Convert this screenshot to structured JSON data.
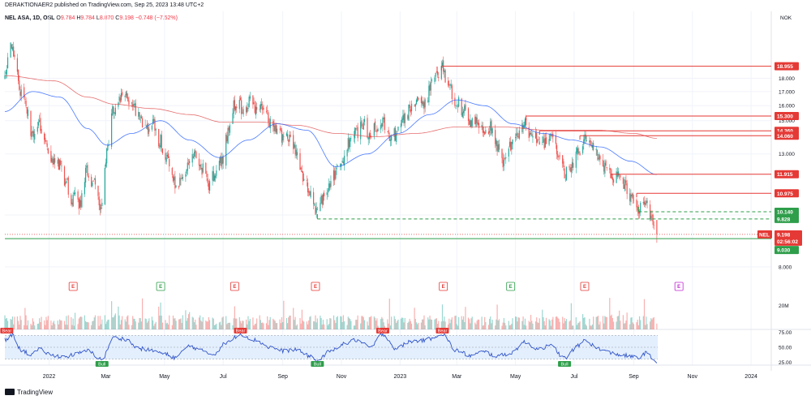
{
  "header": {
    "published": "DERAKTIONAER2 published on TradingView.com, Sep 25, 2023 13:48 UTC+2"
  },
  "legend": {
    "symbol": "NEL ASA, 1D, OSL",
    "o_label": "O",
    "o_value": "9.784",
    "h_label": "H",
    "h_value": "9.784",
    "l_label": "L",
    "l_value": "8.870",
    "c_label": "C",
    "c_value": "9.198",
    "change": "−0.748 (−7.52%)"
  },
  "footer": {
    "brand": "TradingView"
  },
  "colors": {
    "up": "#26a69a",
    "down": "#ef5350",
    "ma_fast": "#2962ff",
    "ma_slow": "#e04a4a",
    "level": "#e53935",
    "support": "#2e9e4a",
    "rsi": "#3154c8",
    "rsi_band": "#e3effd"
  },
  "chart_data": {
    "type": "candlestick",
    "symbol": "NEL",
    "currency": "NOK",
    "y_scale": "log",
    "ylim": [
      7.75,
      24.0
    ],
    "x_range": [
      "2021-11-16",
      "2024-01-22"
    ],
    "y_ticks": [
      "8.000",
      "10.000",
      "13.000",
      "15.000",
      "16.000",
      "17.000",
      "18.000"
    ],
    "x_ticks": [
      {
        "date": "2022-01-01",
        "label": "2022"
      },
      {
        "date": "2022-03-01",
        "label": "Mar"
      },
      {
        "date": "2022-05-01",
        "label": "May"
      },
      {
        "date": "2022-07-01",
        "label": "Jul"
      },
      {
        "date": "2022-09-01",
        "label": "Sep"
      },
      {
        "date": "2022-11-01",
        "label": "Nov"
      },
      {
        "date": "2023-01-01",
        "label": "2023"
      },
      {
        "date": "2023-03-01",
        "label": "Mar"
      },
      {
        "date": "2023-05-01",
        "label": "May"
      },
      {
        "date": "2023-07-01",
        "label": "Jul"
      },
      {
        "date": "2023-09-01",
        "label": "Sep"
      },
      {
        "date": "2023-11-01",
        "label": "Nov"
      },
      {
        "date": "2024-01-01",
        "label": "2024"
      }
    ],
    "last": {
      "symbol": "NEL",
      "price": 9.198,
      "price_label": "9.198",
      "countdown": "02:56:02"
    },
    "resistance_levels": [
      {
        "price": 18.955,
        "label": "18.955",
        "from": "2023-02-13"
      },
      {
        "price": 15.3,
        "label": "15.300",
        "from": "2023-05-12"
      },
      {
        "price": 14.36,
        "label": "14.360",
        "from": "2023-05-26"
      },
      {
        "price": 14.06,
        "label": "14.060",
        "from": "2023-07-07"
      },
      {
        "price": 11.915,
        "label": "11.915",
        "from": "2023-08-08"
      },
      {
        "price": 10.975,
        "label": "10.975",
        "from": "2023-09-04"
      }
    ],
    "support_levels": [
      {
        "price": 10.14,
        "label": "10.140",
        "from": "2023-09-06",
        "style": "dashed"
      },
      {
        "price": 9.828,
        "label": "9.828",
        "from": "2022-10-07",
        "style": "dashed"
      },
      {
        "price": 9.03,
        "label": "9.030",
        "from": "2021-11-16",
        "style": "solid"
      }
    ],
    "earnings_markers": [
      {
        "date": "2022-01-26",
        "type": "past_miss",
        "label": "E"
      },
      {
        "date": "2022-04-27",
        "type": "past_beat",
        "label": "E"
      },
      {
        "date": "2022-07-13",
        "type": "past_miss",
        "label": "E"
      },
      {
        "date": "2022-10-05",
        "type": "past_miss",
        "label": "E"
      },
      {
        "date": "2023-02-15",
        "type": "past_miss",
        "label": "E"
      },
      {
        "date": "2023-04-26",
        "type": "past_beat",
        "label": "E"
      },
      {
        "date": "2023-07-12",
        "type": "past_miss",
        "label": "E"
      },
      {
        "date": "2023-10-18",
        "type": "upcoming",
        "label": "E"
      }
    ],
    "anchors": [
      [
        "2021-11-16",
        18.0
      ],
      [
        "2021-11-22",
        21.0
      ],
      [
        "2021-11-26",
        19.5
      ],
      [
        "2021-12-02",
        17.2
      ],
      [
        "2021-12-08",
        16.0
      ],
      [
        "2021-12-14",
        14.0
      ],
      [
        "2021-12-20",
        14.8
      ],
      [
        "2021-12-29",
        13.4
      ],
      [
        "2022-01-06",
        12.4
      ],
      [
        "2022-01-12",
        12.5
      ],
      [
        "2022-01-18",
        11.6
      ],
      [
        "2022-01-24",
        10.6
      ],
      [
        "2022-01-28",
        11.0
      ],
      [
        "2022-02-02",
        10.5
      ],
      [
        "2022-02-09",
        12.2
      ],
      [
        "2022-02-16",
        11.5
      ],
      [
        "2022-02-24",
        10.1
      ],
      [
        "2022-03-02",
        13.0
      ],
      [
        "2022-03-07",
        15.5
      ],
      [
        "2022-03-14",
        16.2
      ],
      [
        "2022-03-21",
        17.0
      ],
      [
        "2022-03-28",
        16.0
      ],
      [
        "2022-04-04",
        15.2
      ],
      [
        "2022-04-11",
        14.3
      ],
      [
        "2022-04-19",
        14.8
      ],
      [
        "2022-04-26",
        13.8
      ],
      [
        "2022-05-03",
        12.8
      ],
      [
        "2022-05-09",
        11.9
      ],
      [
        "2022-05-13",
        11.1
      ],
      [
        "2022-05-20",
        11.8
      ],
      [
        "2022-05-27",
        12.5
      ],
      [
        "2022-06-03",
        12.9
      ],
      [
        "2022-06-10",
        12.2
      ],
      [
        "2022-06-16",
        11.4
      ],
      [
        "2022-06-23",
        12.0
      ],
      [
        "2022-06-30",
        12.6
      ],
      [
        "2022-07-06",
        14.2
      ],
      [
        "2022-07-11",
        15.9
      ],
      [
        "2022-07-15",
        16.3
      ],
      [
        "2022-07-22",
        15.8
      ],
      [
        "2022-07-29",
        16.4
      ],
      [
        "2022-08-05",
        15.5
      ],
      [
        "2022-08-12",
        15.9
      ],
      [
        "2022-08-19",
        14.8
      ],
      [
        "2022-08-26",
        14.4
      ],
      [
        "2022-09-02",
        13.9
      ],
      [
        "2022-09-09",
        14.1
      ],
      [
        "2022-09-16",
        13.0
      ],
      [
        "2022-09-23",
        11.7
      ],
      [
        "2022-09-30",
        11.1
      ],
      [
        "2022-10-07",
        10.1
      ],
      [
        "2022-10-12",
        10.8
      ],
      [
        "2022-10-19",
        11.2
      ],
      [
        "2022-10-26",
        12.0
      ],
      [
        "2022-11-02",
        12.6
      ],
      [
        "2022-11-09",
        13.6
      ],
      [
        "2022-11-16",
        14.2
      ],
      [
        "2022-11-23",
        14.8
      ],
      [
        "2022-11-30",
        14.1
      ],
      [
        "2022-12-07",
        14.5
      ],
      [
        "2022-12-14",
        15.0
      ],
      [
        "2022-12-21",
        13.8
      ],
      [
        "2022-12-30",
        14.3
      ],
      [
        "2023-01-06",
        15.1
      ],
      [
        "2023-01-13",
        16.0
      ],
      [
        "2023-01-20",
        16.7
      ],
      [
        "2023-01-27",
        16.2
      ],
      [
        "2023-02-03",
        17.6
      ],
      [
        "2023-02-09",
        18.4
      ],
      [
        "2023-02-14",
        18.7
      ],
      [
        "2023-02-21",
        17.3
      ],
      [
        "2023-02-28",
        16.3
      ],
      [
        "2023-03-07",
        15.8
      ],
      [
        "2023-03-14",
        14.8
      ],
      [
        "2023-03-21",
        15.1
      ],
      [
        "2023-03-28",
        14.4
      ],
      [
        "2023-04-04",
        14.6
      ],
      [
        "2023-04-12",
        13.4
      ],
      [
        "2023-04-19",
        12.6
      ],
      [
        "2023-04-26",
        13.5
      ],
      [
        "2023-05-03",
        14.1
      ],
      [
        "2023-05-10",
        14.8
      ],
      [
        "2023-05-16",
        14.2
      ],
      [
        "2023-05-23",
        14.0
      ],
      [
        "2023-05-31",
        13.6
      ],
      [
        "2023-06-07",
        13.9
      ],
      [
        "2023-06-14",
        13.1
      ],
      [
        "2023-06-21",
        11.9
      ],
      [
        "2023-06-28",
        12.2
      ],
      [
        "2023-07-05",
        13.1
      ],
      [
        "2023-07-12",
        13.9
      ],
      [
        "2023-07-19",
        13.7
      ],
      [
        "2023-07-26",
        12.9
      ],
      [
        "2023-08-02",
        12.4
      ],
      [
        "2023-08-09",
        11.7
      ],
      [
        "2023-08-16",
        11.9
      ],
      [
        "2023-08-23",
        11.3
      ],
      [
        "2023-08-30",
        10.8
      ],
      [
        "2023-09-06",
        10.2
      ],
      [
        "2023-09-13",
        10.6
      ],
      [
        "2023-09-20",
        9.95
      ],
      [
        "2023-09-25",
        9.2
      ]
    ],
    "ma_fast_anchors": [
      [
        "2021-11-16",
        15.6
      ],
      [
        "2021-12-15",
        17.0
      ],
      [
        "2022-01-12",
        16.6
      ],
      [
        "2022-02-10",
        14.5
      ],
      [
        "2022-03-02",
        13.5
      ],
      [
        "2022-03-28",
        14.2
      ],
      [
        "2022-04-27",
        15.0
      ],
      [
        "2022-05-27",
        13.8
      ],
      [
        "2022-06-27",
        12.8
      ],
      [
        "2022-07-27",
        13.8
      ],
      [
        "2022-08-26",
        14.8
      ],
      [
        "2022-09-26",
        14.4
      ],
      [
        "2022-10-26",
        12.3
      ],
      [
        "2022-11-28",
        13.0
      ],
      [
        "2022-12-30",
        14.2
      ],
      [
        "2023-02-01",
        15.4
      ],
      [
        "2023-03-01",
        16.4
      ],
      [
        "2023-03-30",
        16.0
      ],
      [
        "2023-04-28",
        14.8
      ],
      [
        "2023-05-30",
        14.2
      ],
      [
        "2023-06-29",
        13.8
      ],
      [
        "2023-07-28",
        13.4
      ],
      [
        "2023-08-29",
        12.6
      ],
      [
        "2023-09-25",
        11.9
      ]
    ],
    "ma_slow_anchors": [
      [
        "2021-11-16",
        18.2
      ],
      [
        "2022-01-06",
        17.8
      ],
      [
        "2022-02-10",
        16.6
      ],
      [
        "2022-03-10",
        16.1
      ],
      [
        "2022-04-18",
        15.8
      ],
      [
        "2022-05-27",
        15.4
      ],
      [
        "2022-07-01",
        14.9
      ],
      [
        "2022-08-09",
        14.9
      ],
      [
        "2022-09-16",
        14.7
      ],
      [
        "2022-10-27",
        14.2
      ],
      [
        "2022-12-06",
        14.0
      ],
      [
        "2023-01-18",
        14.2
      ],
      [
        "2023-03-01",
        14.6
      ],
      [
        "2023-04-18",
        14.6
      ],
      [
        "2023-06-02",
        14.4
      ],
      [
        "2023-07-25",
        14.4
      ],
      [
        "2023-09-01",
        14.2
      ],
      [
        "2023-09-25",
        13.9
      ]
    ],
    "volume": {
      "scale_label": "20M",
      "max_million": 30
    },
    "rsi": {
      "ticks": [
        "75.00",
        "50.00",
        "25.00"
      ],
      "band": [
        30,
        70
      ],
      "range": [
        20,
        80
      ],
      "signals": [
        {
          "date": "2021-11-18",
          "label": "Bear",
          "kind": "bear"
        },
        {
          "date": "2022-02-25",
          "label": "Bull",
          "kind": "bull"
        },
        {
          "date": "2022-07-19",
          "label": "Bear",
          "kind": "bear"
        },
        {
          "date": "2022-10-07",
          "label": "Bull",
          "kind": "bull"
        },
        {
          "date": "2022-12-14",
          "label": "Bear",
          "kind": "bear"
        },
        {
          "date": "2023-02-14",
          "label": "Bear",
          "kind": "bear"
        },
        {
          "date": "2023-06-21",
          "label": "Bull",
          "kind": "bull"
        }
      ],
      "anchors": [
        [
          "2021-11-16",
          62
        ],
        [
          "2021-11-24",
          70
        ],
        [
          "2021-12-03",
          45
        ],
        [
          "2021-12-13",
          38
        ],
        [
          "2021-12-22",
          46
        ],
        [
          "2022-01-05",
          36
        ],
        [
          "2022-01-18",
          34
        ],
        [
          "2022-01-28",
          38
        ],
        [
          "2022-02-10",
          44
        ],
        [
          "2022-02-25",
          30
        ],
        [
          "2022-03-09",
          66
        ],
        [
          "2022-03-21",
          64
        ],
        [
          "2022-04-04",
          48
        ],
        [
          "2022-04-20",
          44
        ],
        [
          "2022-05-02",
          38
        ],
        [
          "2022-05-12",
          33
        ],
        [
          "2022-05-27",
          52
        ],
        [
          "2022-06-10",
          44
        ],
        [
          "2022-06-20",
          38
        ],
        [
          "2022-07-05",
          58
        ],
        [
          "2022-07-19",
          72
        ],
        [
          "2022-08-03",
          62
        ],
        [
          "2022-08-19",
          50
        ],
        [
          "2022-09-01",
          44
        ],
        [
          "2022-09-14",
          46
        ],
        [
          "2022-09-28",
          36
        ],
        [
          "2022-10-07",
          27
        ],
        [
          "2022-10-19",
          42
        ],
        [
          "2022-11-02",
          55
        ],
        [
          "2022-11-16",
          62
        ],
        [
          "2022-12-01",
          50
        ],
        [
          "2022-12-14",
          72
        ],
        [
          "2022-12-28",
          48
        ],
        [
          "2023-01-12",
          60
        ],
        [
          "2023-01-26",
          62
        ],
        [
          "2023-02-14",
          72
        ],
        [
          "2023-02-28",
          45
        ],
        [
          "2023-03-15",
          36
        ],
        [
          "2023-03-29",
          42
        ],
        [
          "2023-04-12",
          35
        ],
        [
          "2023-04-26",
          40
        ],
        [
          "2023-05-10",
          58
        ],
        [
          "2023-05-24",
          48
        ],
        [
          "2023-06-07",
          52
        ],
        [
          "2023-06-21",
          32
        ],
        [
          "2023-07-05",
          52
        ],
        [
          "2023-07-12",
          62
        ],
        [
          "2023-07-26",
          48
        ],
        [
          "2023-08-09",
          40
        ],
        [
          "2023-08-23",
          36
        ],
        [
          "2023-09-06",
          32
        ],
        [
          "2023-09-13",
          40
        ],
        [
          "2023-09-25",
          26
        ]
      ]
    }
  }
}
